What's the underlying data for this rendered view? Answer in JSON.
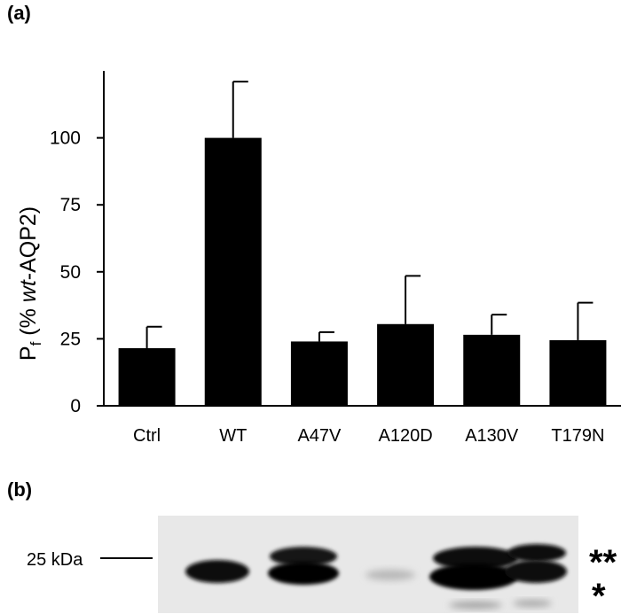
{
  "panels": {
    "a_label": "(a)",
    "b_label": "(b)"
  },
  "chart_data": {
    "type": "bar",
    "categories": [
      "Ctrl",
      "WT",
      "A47V",
      "A120D",
      "A130V",
      "T179N"
    ],
    "values": [
      21.5,
      100,
      24,
      30.5,
      26.5,
      24.5
    ],
    "errors": [
      8,
      21,
      3.5,
      18,
      7.5,
      14
    ],
    "ylabel_main": "P",
    "ylabel_sub": "f",
    "ylabel_rest_1": " (% ",
    "ylabel_italic": "wt",
    "ylabel_rest_2": "-AQP2)",
    "ylim": [
      0,
      125
    ],
    "yticks": [
      0,
      25,
      50,
      75,
      100
    ],
    "bar_color": "#000000",
    "grid": false
  },
  "blot": {
    "marker_label": "25 kDa",
    "upper_band_marker": "**",
    "lower_band_marker": "*",
    "background_color": "#e8e8e8"
  }
}
